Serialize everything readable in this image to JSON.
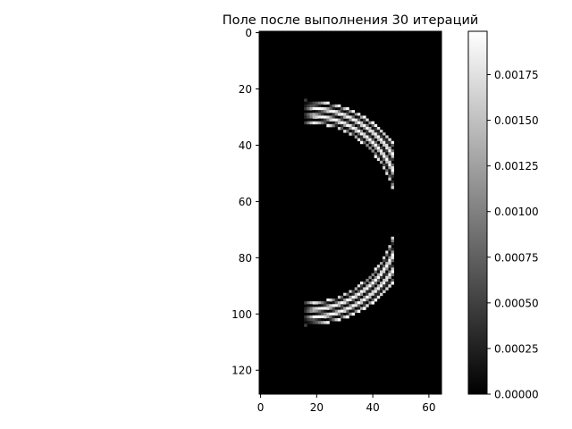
{
  "chart_data": {
    "type": "heatmap",
    "title": "Поле после выполнения 30 итераций",
    "xlabel": "",
    "ylabel": "",
    "colormap": "gray",
    "grid": false,
    "image_size": {
      "cols": 65,
      "rows": 129
    },
    "xlim": [
      -0.5,
      64.5
    ],
    "ylim": [
      128.5,
      -0.5
    ],
    "x_ticks": [
      0,
      20,
      40,
      60
    ],
    "y_ticks": [
      0,
      20,
      40,
      60,
      80,
      100,
      120
    ],
    "x_tick_labels": [
      "0",
      "20",
      "40",
      "60"
    ],
    "y_tick_labels": [
      "0",
      "20",
      "40",
      "60",
      "80",
      "100",
      "120"
    ],
    "colorbar": {
      "range": [
        0.0,
        0.0019875
      ],
      "ticks": [
        0.0,
        0.00025,
        0.0005,
        0.00075,
        0.001,
        0.00125,
        0.0015,
        0.00175
      ],
      "tick_labels": [
        "0.00000",
        "0.00025",
        "0.00050",
        "0.00075",
        "0.00100",
        "0.00125",
        "0.00150",
        "0.00175"
      ]
    },
    "wave_front": {
      "center": [
        16,
        64
      ],
      "outer_radius": 40,
      "band_width": 8,
      "x_max": 47,
      "ring_period": 2.7,
      "gap_rows": [
        56,
        72
      ],
      "peak_value": 0.00199,
      "background_value": 0.0
    }
  }
}
